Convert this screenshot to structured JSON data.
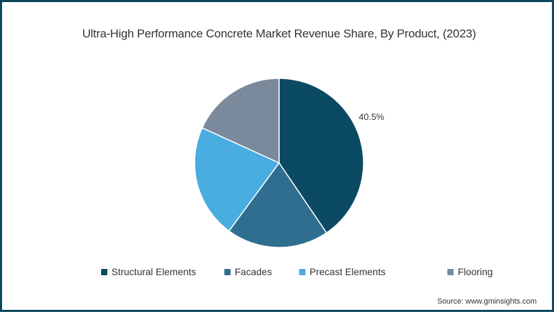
{
  "chart_data": {
    "type": "pie",
    "title": "Ultra-High Performance Concrete Market Revenue Share, By Product, (2023)",
    "categories": [
      "Structural Elements",
      "Facades",
      "Precast Elements",
      "Flooring"
    ],
    "values": [
      40.5,
      19.6,
      21.7,
      18.2
    ],
    "colors": [
      "#0b4a63",
      "#2f6e8f",
      "#49ade0",
      "#7a8a9c"
    ],
    "data_labels": [
      {
        "category": "Structural Elements",
        "text": "40.5%"
      }
    ],
    "legend_position": "bottom",
    "start_angle": "12 o'clock, clockwise"
  },
  "title": "Ultra-High Performance Concrete Market Revenue Share, By Product, (2023)",
  "legend": [
    {
      "label": "Structural Elements",
      "color": "#0b4a63"
    },
    {
      "label": "Facades",
      "color": "#2f6e8f"
    },
    {
      "label": "Precast Elements",
      "color": "#49ade0"
    },
    {
      "label": "Flooring",
      "color": "#7a8a9c"
    }
  ],
  "labels": {
    "structural": "40.5%"
  },
  "source": "Source: www.gminsights.com",
  "border_color": "#0b4660"
}
